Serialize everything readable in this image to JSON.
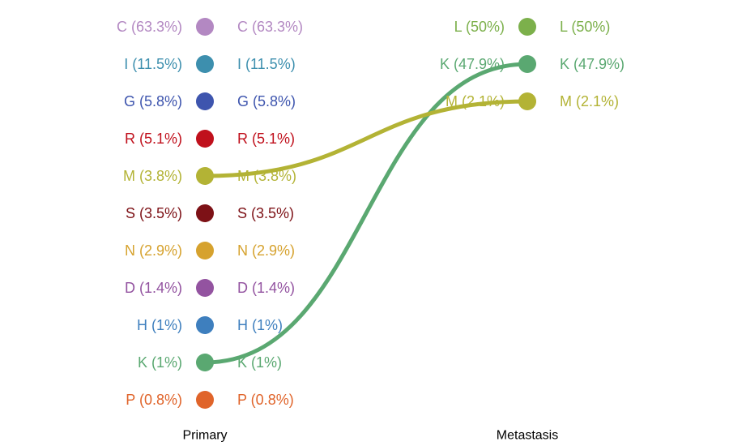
{
  "chart_data": {
    "type": "slopegraph",
    "title": "",
    "columns": [
      {
        "name": "Primary",
        "categories": [
          {
            "label": "C (63.3%)",
            "color": "#b388c2"
          },
          {
            "label": "I (11.5%)",
            "color": "#3d8fae"
          },
          {
            "label": "G (5.8%)",
            "color": "#3e55ae"
          },
          {
            "label": "R (5.1%)",
            "color": "#c0101c"
          },
          {
            "label": "M (3.8%)",
            "color": "#b3b335"
          },
          {
            "label": "S (3.5%)",
            "color": "#7d1116"
          },
          {
            "label": "N (2.9%)",
            "color": "#d6a22e"
          },
          {
            "label": "D (1.4%)",
            "color": "#9353a0"
          },
          {
            "label": "H (1%)",
            "color": "#3e7fbe"
          },
          {
            "label": "K (1%)",
            "color": "#5aa871"
          },
          {
            "label": "P (0.8%)",
            "color": "#e0642a"
          }
        ]
      },
      {
        "name": "Metastasis",
        "categories": [
          {
            "label": "L (50%)",
            "color": "#7cb04b"
          },
          {
            "label": "K (47.9%)",
            "color": "#5aa871"
          },
          {
            "label": "M (2.1%)",
            "color": "#b3b335"
          }
        ]
      }
    ],
    "links": [
      {
        "from": "K (1%)",
        "to": "K (47.9%)",
        "color": "#5aa871"
      },
      {
        "from": "M (3.8%)",
        "to": "M (2.1%)",
        "color": "#b3b335"
      }
    ]
  }
}
